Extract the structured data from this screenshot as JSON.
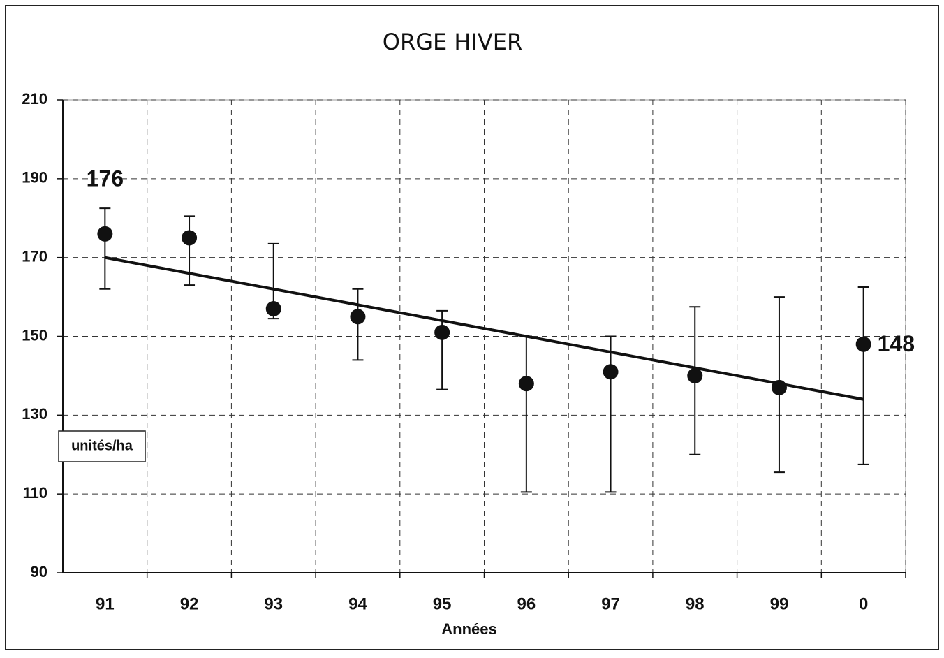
{
  "chart_data": {
    "type": "errorbar",
    "title": "ORGE HIVER",
    "x_label": "Années",
    "y_label": "unités/ha",
    "categories": [
      "91",
      "92",
      "93",
      "94",
      "95",
      "96",
      "97",
      "98",
      "99",
      "0"
    ],
    "values": [
      176,
      175,
      157,
      155,
      151,
      138,
      141,
      140,
      137,
      148
    ],
    "value_labels": [
      "176",
      null,
      null,
      null,
      null,
      null,
      null,
      null,
      null,
      "148"
    ],
    "error_high": [
      182.5,
      180.5,
      173.5,
      162,
      156.5,
      150,
      150,
      157.5,
      160,
      162.5
    ],
    "error_low": [
      162,
      163,
      154.5,
      144,
      136.5,
      110.5,
      110.5,
      120,
      115.5,
      117.5
    ],
    "trend": [
      170,
      166,
      162,
      158,
      154,
      150,
      146,
      142,
      138,
      134
    ],
    "color": "#111111",
    "ylim": [
      90,
      210
    ],
    "yticks": [
      90,
      110,
      130,
      150,
      170,
      190,
      210
    ],
    "grid": true
  }
}
